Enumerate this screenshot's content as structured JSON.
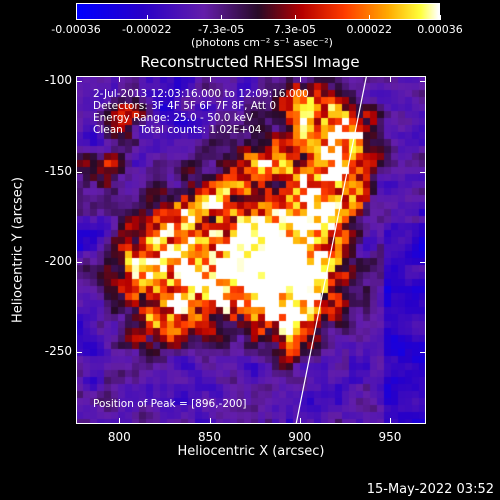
{
  "colorbar": {
    "tick_labels": [
      "-0.00036",
      "-0.00022",
      "-7.3e-05",
      "7.3e-05",
      "0.00022",
      "0.00036"
    ],
    "tick_values": [
      -0.00036,
      -0.00022,
      -7.3e-05,
      7.3e-05,
      0.00022,
      0.00036
    ],
    "units": "(photons cm⁻² s⁻¹ asec⁻²)"
  },
  "chart_data": {
    "type": "heatmap",
    "title": "Reconstructed RHESSI Image",
    "xlabel": "Heliocentric X (arcsec)",
    "ylabel": "Heliocentric Y (arcsec)",
    "xlim": [
      776,
      970
    ],
    "ylim": [
      -290,
      -97
    ],
    "x_ticks": [
      800,
      850,
      900,
      950
    ],
    "y_ticks": [
      -100,
      -150,
      -200,
      -250
    ],
    "x_tick_labels": [
      "800",
      "850",
      "900",
      "950"
    ],
    "y_tick_labels": [
      "-100",
      "-150",
      "-200",
      "-250"
    ],
    "colormap": "blue-purple-red-yellow-white",
    "value_range": [
      -0.00036,
      0.00036
    ],
    "peak": [
      896,
      -200
    ],
    "limb_line": {
      "x": [
        898,
        937
      ],
      "y": [
        -290,
        -97
      ]
    },
    "annotations": [
      "2-Jul-2013 12:03:16.000 to 12:09:16.000",
      "Detectors: 3F 4F 5F 6F 7F 8F, Att 0",
      "Energy Range: 25.0 - 50.0 keV",
      "Clean     Total counts: 1.02E+04"
    ],
    "peak_label": "Position of Peak = [896,-200]"
  },
  "footer": {
    "date": "15-May-2022 03:52"
  }
}
